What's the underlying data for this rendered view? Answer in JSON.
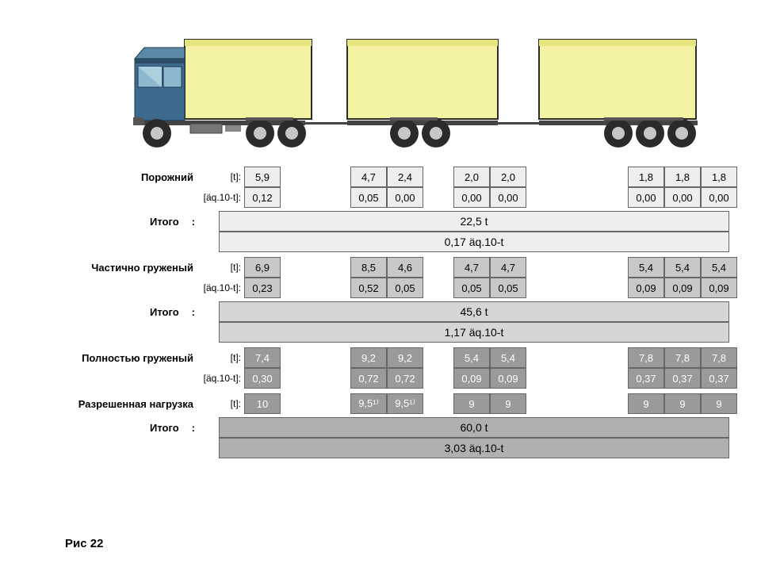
{
  "truck": {
    "cab_color": "#3c6b8f",
    "cab_dark": "#2b4e66",
    "cab_highlight": "#8eb7d0",
    "body_color": "#f3f2a2",
    "body_stroke": "#2b2b2b",
    "wheel_color": "#2b2b2b",
    "hub_color": "#c7c7c7",
    "chassis_color": "#444"
  },
  "sections": [
    {
      "label": "Порожний",
      "rows": [
        {
          "unit": "[t]:",
          "vals": [
            "5,9",
            "4,7",
            "2,4",
            "2,0",
            "2,0",
            "1,8",
            "1,8",
            "1,8"
          ],
          "bg": "#eeeeee"
        },
        {
          "unit": "[äq.10-t]:",
          "vals": [
            "0,12",
            "0,05",
            "0,00",
            "0,00",
            "0,00",
            "0,00",
            "0,00",
            "0,00"
          ],
          "bg": "#eeeeee"
        }
      ],
      "sum": {
        "bg": "#eeeeee",
        "t": "22,5 t",
        "aq": "0,17 äq.10-t"
      }
    },
    {
      "label": "Частично груженый",
      "rows": [
        {
          "unit": "[t]:",
          "vals": [
            "6,9",
            "8,5",
            "4,6",
            "4,7",
            "4,7",
            "5,4",
            "5,4",
            "5,4"
          ],
          "bg": "#c8c8c8"
        },
        {
          "unit": "[äq.10-t]:",
          "vals": [
            "0,23",
            "0,52",
            "0,05",
            "0,05",
            "0,05",
            "0,09",
            "0,09",
            "0,09"
          ],
          "bg": "#c8c8c8"
        }
      ],
      "sum": {
        "bg": "#d6d6d6",
        "t": "45,6 t",
        "aq": "1,17 äq.10-t"
      }
    },
    {
      "label": "Полностью груженый",
      "rows": [
        {
          "unit": "[t]:",
          "vals": [
            "7,4",
            "9,2",
            "9,2",
            "5,4",
            "5,4",
            "7,8",
            "7,8",
            "7,8"
          ],
          "bg": "#9a9a9a",
          "color": "#fff"
        },
        {
          "unit": "[äq.10-t]:",
          "vals": [
            "0,30",
            "0,72",
            "0,72",
            "0,09",
            "0,09",
            "0,37",
            "0,37",
            "0,37"
          ],
          "bg": "#9a9a9a",
          "color": "#fff"
        }
      ]
    },
    {
      "label": "Разрешенная нагрузка",
      "rows": [
        {
          "unit": "[t]:",
          "vals": [
            "10",
            "9,5¹⁾",
            "9,5¹⁾",
            "9",
            "9",
            "9",
            "9",
            "9"
          ],
          "bg": "#9a9a9a",
          "color": "#fff"
        }
      ],
      "sum": {
        "bg": "#b0b0b0",
        "t": "60,0 t",
        "aq": "3,03 äq.10-t"
      }
    }
  ],
  "sum_label": "Итого",
  "figure_label": "Рис 22",
  "hr_positions": [
    278,
    362,
    534
  ]
}
